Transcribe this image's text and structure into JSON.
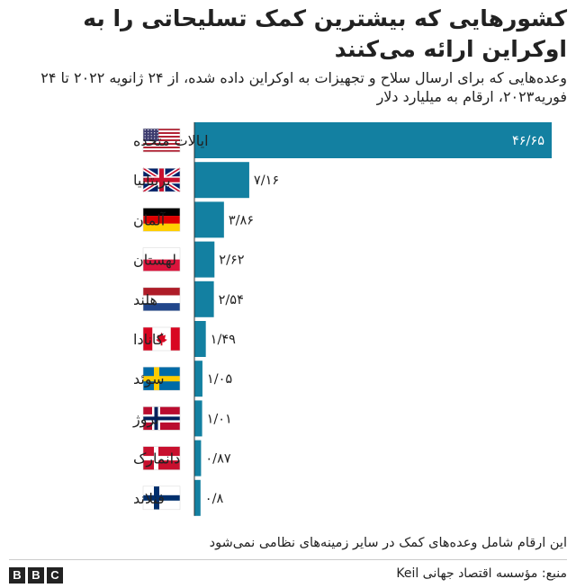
{
  "title": "کشورهایی که بیشترین کمک تسلیحاتی را به اوکراین ارائه  می‌کنند",
  "subtitle": "وعده‌هایی که برای ارسال سلاح و تجهیزات به اوکراین داده شده، از ۲۴ ژانویه ۲۰۲۲ تا ۲۴ فوریه۲۰۲۳، ارقام به میلیارد دلار",
  "footnote": "این ارقام شامل  وعده‌های کمک در  سایر زمینه‌های نظامی نمی‌شود",
  "source": "منبع: مؤسسه اقتصاد جهانی Keil",
  "logo": {
    "letters": [
      "B",
      "B",
      "C"
    ]
  },
  "colors": {
    "bar": "#1380a1",
    "axis": "#333333",
    "text": "#222222"
  },
  "chart_data": {
    "type": "bar",
    "orientation": "horizontal",
    "unit": "میلیارد دلار",
    "categories": [
      "ایالات متحده",
      "بریتانیا",
      "آلمان",
      "لهستان",
      "هلند",
      "کانادا",
      "سوئد",
      "نروژ",
      "دانمارک",
      "فنلاند"
    ],
    "flags": [
      "us-flag",
      "uk-flag",
      "germany-flag",
      "poland-flag",
      "netherlands-flag",
      "canada-flag",
      "sweden-flag",
      "norway-flag",
      "denmark-flag",
      "finland-flag"
    ],
    "values": [
      46.65,
      7.16,
      3.86,
      2.62,
      2.54,
      1.49,
      1.05,
      1.01,
      0.87,
      0.8
    ],
    "value_labels": [
      "۴۶/۶۵",
      "۷/۱۶",
      "۳/۸۶",
      "۲/۶۲",
      "۲/۵۴",
      "۱/۴۹",
      "۱/۰۵",
      "۱/۰۱",
      "۰/۸۷",
      "۰/۸"
    ],
    "xlim": [
      0,
      46.65
    ],
    "grid": false,
    "legend": "none"
  }
}
